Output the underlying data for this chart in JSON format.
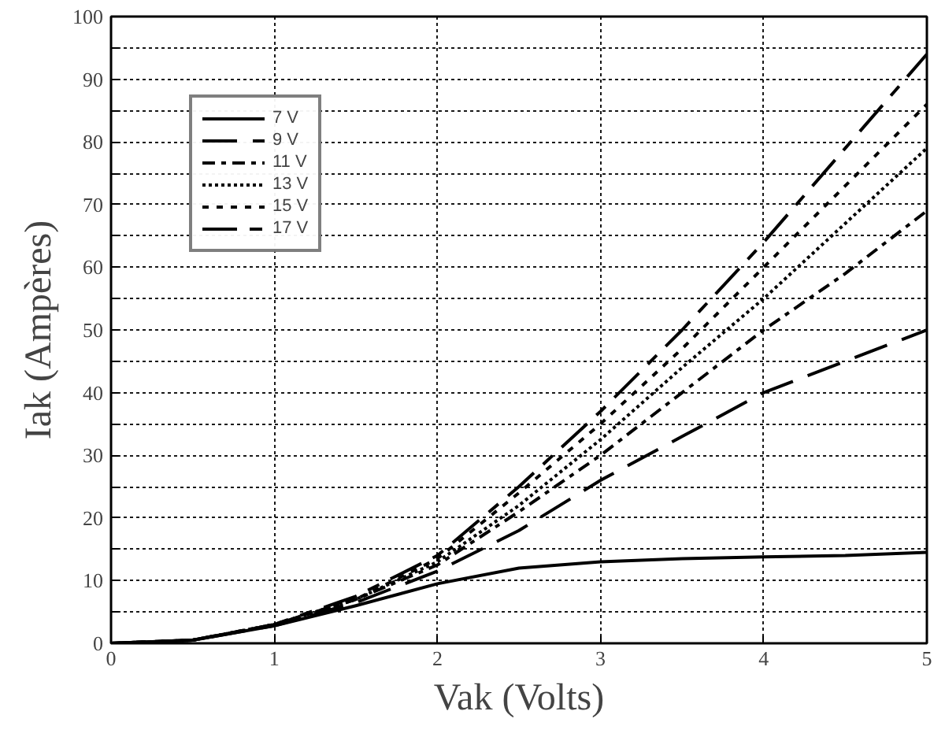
{
  "chart_data": {
    "type": "line",
    "xlabel": "Vak (Volts)",
    "ylabel": "Iak (Ampères)",
    "x": [
      0,
      0.5,
      1,
      1.5,
      2,
      2.5,
      3,
      3.5,
      4,
      4.5,
      5
    ],
    "series": [
      {
        "name": "7 V",
        "color": "#000000",
        "line_style": "solid",
        "values": [
          0,
          0.5,
          2.8,
          6,
          9.5,
          12,
          13,
          13.5,
          13.8,
          14,
          14.5
        ]
      },
      {
        "name": "9 V",
        "color": "#000000",
        "line_style": "longdash",
        "values": [
          0,
          0.5,
          2.8,
          6.5,
          11.5,
          18,
          26,
          33,
          40,
          45,
          50
        ]
      },
      {
        "name": "11 V",
        "color": "#000000",
        "line_style": "dashdot",
        "values": [
          0,
          0.5,
          3,
          7,
          12.5,
          21,
          30,
          40,
          50,
          59,
          69
        ]
      },
      {
        "name": "13 V",
        "color": "#000000",
        "line_style": "dotted",
        "values": [
          0,
          0.5,
          3,
          7,
          13,
          22,
          32.5,
          44,
          55,
          67,
          79
        ]
      },
      {
        "name": "15 V",
        "color": "#000000",
        "line_style": "dashed",
        "values": [
          0,
          0.5,
          3,
          7,
          13.5,
          24,
          35,
          47,
          60,
          73,
          86
        ]
      },
      {
        "name": "17 V",
        "color": "#000000",
        "line_style": "longshort",
        "values": [
          0,
          0.5,
          3,
          7.5,
          14,
          25,
          37,
          50,
          64,
          79,
          94
        ]
      }
    ],
    "xlim": [
      0,
      5
    ],
    "ylim": [
      0,
      100
    ],
    "xticks": [
      0,
      1,
      2,
      3,
      4,
      5
    ],
    "yticks": [
      0,
      {
        "value": 5,
        "label": null
      },
      10,
      {
        "value": 15,
        "label": null
      },
      20,
      {
        "value": 25,
        "label": null
      },
      30,
      {
        "value": 35,
        "label": null
      },
      40,
      {
        "value": 45,
        "label": null
      },
      50,
      {
        "value": 55,
        "label": null
      },
      60,
      {
        "value": 65,
        "label": null
      },
      70,
      {
        "value": 75,
        "label": null
      },
      80,
      {
        "value": 85,
        "label": null
      },
      90,
      {
        "value": 95,
        "label": null
      },
      100
    ],
    "grid": true,
    "legend": "top left",
    "marker": "none"
  }
}
